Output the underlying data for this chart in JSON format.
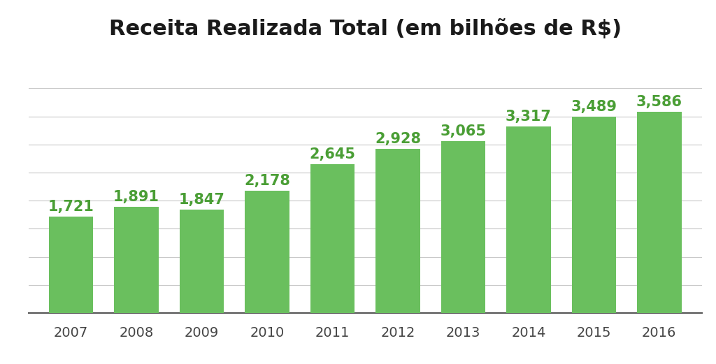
{
  "title": "Receita Realizada Total (em bilhões de R$)",
  "years": [
    "2007",
    "2008",
    "2009",
    "2010",
    "2011",
    "2012",
    "2013",
    "2014",
    "2015",
    "2016"
  ],
  "values": [
    1.721,
    1.891,
    1.847,
    2.178,
    2.645,
    2.928,
    3.065,
    3.317,
    3.489,
    3.586
  ],
  "labels": [
    "1,721",
    "1,891",
    "1,847",
    "2,178",
    "2,645",
    "2,928",
    "3,065",
    "3,317",
    "3,489",
    "3,586"
  ],
  "bar_color": "#6abf5e",
  "label_color": "#4a9e35",
  "title_color": "#1a1a1a",
  "background_color": "#ffffff",
  "grid_color": "#c8c8c8",
  "ylim": [
    0,
    4.6
  ],
  "title_fontsize": 22,
  "label_fontsize": 15,
  "tick_fontsize": 14,
  "grid_yticks": [
    0.5,
    1.0,
    1.5,
    2.0,
    2.5,
    3.0,
    3.5,
    4.0
  ]
}
